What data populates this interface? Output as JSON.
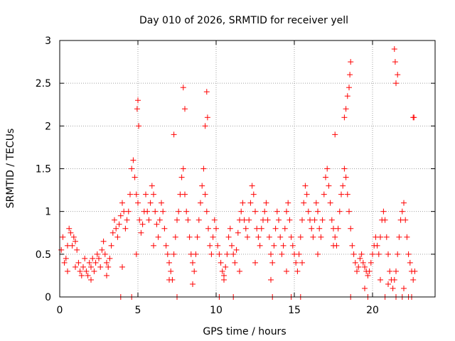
{
  "chart_data": {
    "type": "scatter",
    "title": "Day 010 of 2026, SRMTID for receiver yell",
    "xlabel": "GPS time / hours",
    "ylabel": "SRMTID / TECUs",
    "xlim": [
      0,
      24
    ],
    "ylim": [
      0,
      3
    ],
    "x_ticks": [
      0,
      5,
      10,
      15,
      20
    ],
    "x_tick_labels": [
      "0",
      "5",
      "10",
      "15",
      "20"
    ],
    "y_ticks": [
      0,
      0.5,
      1,
      1.5,
      2,
      2.5,
      3
    ],
    "y_tick_labels": [
      "0",
      "0.5",
      "1",
      "1.5",
      "2",
      "2.5",
      "3"
    ],
    "grid": true,
    "marker": "+",
    "series": [
      {
        "name": "SRMTID",
        "color": "#ff0000",
        "x": [
          0.1,
          0.2,
          0.3,
          0.4,
          0.5,
          0.6,
          0.7,
          0.8,
          0.9,
          1.0,
          1.1,
          1.2,
          1.3,
          1.4,
          1.5,
          1.6,
          1.7,
          1.8,
          1.9,
          2.0,
          2.1,
          2.2,
          2.3,
          2.4,
          2.5,
          2.6,
          2.7,
          2.8,
          2.9,
          3.0,
          3.1,
          3.2,
          3.3,
          3.4,
          3.5,
          3.6,
          3.7,
          3.8,
          3.9,
          4.0,
          4.1,
          4.2,
          4.3,
          4.4,
          4.5,
          4.6,
          4.7,
          4.8,
          4.9,
          5.0,
          5.1,
          5.2,
          5.3,
          5.4,
          5.5,
          5.6,
          5.7,
          5.8,
          5.9,
          6.0,
          6.1,
          6.2,
          6.3,
          6.4,
          6.5,
          6.6,
          6.7,
          6.8,
          6.9,
          7.0,
          7.1,
          7.2,
          7.3,
          7.4,
          7.5,
          7.6,
          7.7,
          7.8,
          7.9,
          8.0,
          8.1,
          8.2,
          8.3,
          8.4,
          8.5,
          8.6,
          8.7,
          8.8,
          8.9,
          9.0,
          9.1,
          9.2,
          9.3,
          9.4,
          9.5,
          9.6,
          9.7,
          9.8,
          9.9,
          10.0,
          10.1,
          10.2,
          10.3,
          10.4,
          10.5,
          10.6,
          10.7,
          10.8,
          10.9,
          11.0,
          11.1,
          11.2,
          11.3,
          11.4,
          11.5,
          11.6,
          11.7,
          11.8,
          11.9,
          12.0,
          12.1,
          12.2,
          12.3,
          12.4,
          12.5,
          12.6,
          12.7,
          12.8,
          12.9,
          13.0,
          13.1,
          13.2,
          13.3,
          13.4,
          13.5,
          13.6,
          13.7,
          13.8,
          13.9,
          14.0,
          14.1,
          14.2,
          14.3,
          14.4,
          14.5,
          14.6,
          14.7,
          14.8,
          14.9,
          15.0,
          15.1,
          15.2,
          15.3,
          15.4,
          15.5,
          15.6,
          15.7,
          15.8,
          15.9,
          16.0,
          16.1,
          16.2,
          16.3,
          16.4,
          16.5,
          16.6,
          16.7,
          16.8,
          16.9,
          17.0,
          17.1,
          17.2,
          17.3,
          17.4,
          17.5,
          17.6,
          17.7,
          17.8,
          17.9,
          18.0,
          18.1,
          18.2,
          18.3,
          18.4,
          18.5,
          18.6,
          18.7,
          18.8,
          18.9,
          19.0,
          19.1,
          19.2,
          19.3,
          19.4,
          19.5,
          19.6,
          19.7,
          19.8,
          19.9,
          20.0,
          20.1,
          20.2,
          20.3,
          20.4,
          20.5,
          20.6,
          20.7,
          20.8,
          20.9,
          21.0,
          21.1,
          21.2,
          21.3,
          21.4,
          21.5,
          21.6,
          21.7,
          21.8,
          21.9,
          22.0,
          22.1,
          22.2,
          22.3,
          22.4,
          22.5,
          22.6,
          22.7,
          4.9,
          5.0,
          4.95,
          5.05,
          7.3,
          7.9,
          8.0,
          9.3,
          9.4,
          9.45,
          17.6,
          18.2,
          18.3,
          18.4,
          18.5,
          18.55,
          18.6,
          21.4,
          21.45,
          21.5,
          21.6,
          22.6,
          22.65,
          0.5,
          1.0,
          2.0,
          3.0,
          4.0,
          6.0,
          7.0,
          8.5,
          10.5,
          11.5,
          12.5,
          13.5,
          14.5,
          15.5,
          16.5,
          17.5,
          19.5,
          20.5,
          21.0,
          22.0,
          3.9,
          4.6,
          7.5,
          10.2,
          11.1,
          13.6,
          14.8,
          15.4,
          18.6,
          19.7,
          20.8,
          21.5,
          21.9,
          22.3,
          22.5
        ],
        "y": [
          0.55,
          0.7,
          0.4,
          0.45,
          0.6,
          0.8,
          0.75,
          0.6,
          0.7,
          0.65,
          0.55,
          0.4,
          0.3,
          0.25,
          0.35,
          0.45,
          0.3,
          0.25,
          0.4,
          0.35,
          0.45,
          0.3,
          0.4,
          0.5,
          0.45,
          0.35,
          0.55,
          0.65,
          0.5,
          0.4,
          0.35,
          0.45,
          0.6,
          0.75,
          0.9,
          0.8,
          0.7,
          0.85,
          0.95,
          1.1,
          1.0,
          0.8,
          0.9,
          1.0,
          1.2,
          1.5,
          1.6,
          1.4,
          1.2,
          1.1,
          0.9,
          0.75,
          0.85,
          1.0,
          1.2,
          1.0,
          0.9,
          1.1,
          1.3,
          1.2,
          1.0,
          0.85,
          0.7,
          0.9,
          1.1,
          1.0,
          0.8,
          0.6,
          0.5,
          0.4,
          0.3,
          0.2,
          0.5,
          0.7,
          0.9,
          1.0,
          1.2,
          1.4,
          1.5,
          1.2,
          1.0,
          0.9,
          0.7,
          0.5,
          0.4,
          0.3,
          0.5,
          0.7,
          0.9,
          1.1,
          1.3,
          1.5,
          1.2,
          1.0,
          0.8,
          0.6,
          0.5,
          0.7,
          0.9,
          0.8,
          0.6,
          0.5,
          0.4,
          0.3,
          0.25,
          0.35,
          0.5,
          0.7,
          0.8,
          0.6,
          0.5,
          0.4,
          0.55,
          0.75,
          0.9,
          1.0,
          1.1,
          0.9,
          0.8,
          0.7,
          0.9,
          1.1,
          1.3,
          1.2,
          1.0,
          0.8,
          0.7,
          0.6,
          0.8,
          0.9,
          1.0,
          1.1,
          0.9,
          0.7,
          0.5,
          0.4,
          0.6,
          0.8,
          1.0,
          0.9,
          0.7,
          0.5,
          0.6,
          0.8,
          1.0,
          1.1,
          0.9,
          0.7,
          0.6,
          0.5,
          0.4,
          0.3,
          0.5,
          0.7,
          0.9,
          1.1,
          1.3,
          1.2,
          1.0,
          0.9,
          0.8,
          0.7,
          0.9,
          1.1,
          1.0,
          0.8,
          0.7,
          0.9,
          1.2,
          1.4,
          1.5,
          1.3,
          1.1,
          0.9,
          0.8,
          0.7,
          0.6,
          0.8,
          1.0,
          1.2,
          1.3,
          1.5,
          1.4,
          1.2,
          1.0,
          0.8,
          0.6,
          0.5,
          0.4,
          0.3,
          0.35,
          0.45,
          0.5,
          0.4,
          0.35,
          0.3,
          0.25,
          0.3,
          0.4,
          0.5,
          0.6,
          0.7,
          0.6,
          0.5,
          0.7,
          0.9,
          1.0,
          0.9,
          0.7,
          0.5,
          0.3,
          0.2,
          0.1,
          0.2,
          0.3,
          0.5,
          0.7,
          0.9,
          1.0,
          1.1,
          0.9,
          0.7,
          0.5,
          0.4,
          0.3,
          0.2,
          0.3,
          0.5,
          2.3,
          2.2,
          2.0,
          1.9,
          2.45,
          2.2,
          2.0,
          2.4,
          2.1,
          1.9,
          2.1,
          2.2,
          2.35,
          2.45,
          2.6,
          2.75,
          2.9,
          2.75,
          2.5,
          2.6,
          2.1,
          2.1,
          0.3,
          0.35,
          0.2,
          0.25,
          0.35,
          0.6,
          0.2,
          0.15,
          0.2,
          0.3,
          0.4,
          0.2,
          0.3,
          0.4,
          0.5,
          0.6,
          0.1,
          0.2,
          0.15,
          0.1,
          0.0,
          0.0,
          0.0,
          0.0,
          0.0,
          0.0,
          0.0,
          0.0,
          0.0,
          0.0,
          0.0,
          0.0,
          0.0,
          0.0,
          0.0
        ]
      }
    ]
  }
}
